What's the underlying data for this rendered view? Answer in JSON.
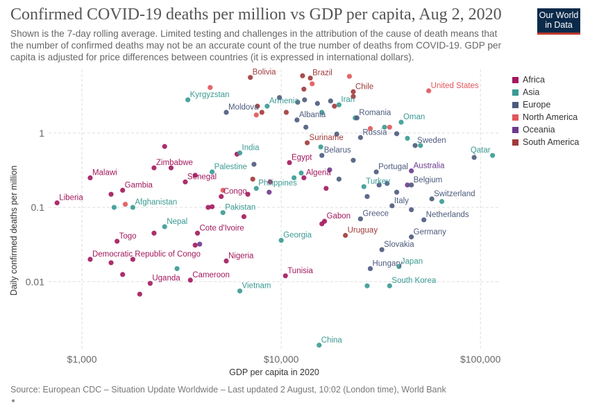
{
  "title": "Confirmed COVID-19 deaths per million vs GDP per capita, Aug 2, 2020",
  "subtitle": "Shown is the 7-day rolling average. Limited testing and challenges in the attribution of the cause of death means that the number of confirmed deaths may not be an accurate count of the true number of deaths from COVID-19. GDP per capita is adjusted for price differences between countries (it is expressed in international dollars).",
  "logo": {
    "line1": "Our World",
    "line2": "in Data"
  },
  "source": "Source: European CDC – Situation Update Worldwide – Last updated 2 August, 10:02 (London time), World Bank",
  "legend": [
    {
      "name": "Africa",
      "color": "#a2185d"
    },
    {
      "name": "Asia",
      "color": "#3a9a93"
    },
    {
      "name": "Europe",
      "color": "#4c5a7d"
    },
    {
      "name": "North America",
      "color": "#e0565a"
    },
    {
      "name": "Oceania",
      "color": "#6c3a8e"
    },
    {
      "name": "South America",
      "color": "#a03a3a"
    }
  ],
  "chart_data": {
    "type": "scatter",
    "title": "Confirmed COVID-19 deaths per million vs GDP per capita, Aug 2, 2020",
    "xlabel": "GDP per capita in 2020",
    "ylabel": "Daily confirmed deaths per million",
    "xscale": "log",
    "yscale": "log",
    "xlim": [
      680,
      125000
    ],
    "ylim": [
      0.0012,
      7.2
    ],
    "x_ticks": [
      1000,
      10000,
      100000
    ],
    "x_tick_labels": [
      "$1,000",
      "$10,000",
      "$100,000"
    ],
    "y_ticks": [
      0.01,
      0.1,
      1
    ],
    "y_tick_labels": [
      "0.01",
      "0.1",
      "1"
    ],
    "grid": true,
    "legend_position": "right",
    "labeled_points": [
      {
        "label": "Bolivia",
        "region": "South America",
        "x": 7000,
        "y": 5.6
      },
      {
        "label": "Brazil",
        "region": "South America",
        "x": 14000,
        "y": 5.5
      },
      {
        "label": "Chile",
        "region": "South America",
        "x": 23000,
        "y": 3.6
      },
      {
        "label": "United States",
        "region": "North America",
        "x": 55000,
        "y": 3.7
      },
      {
        "label": "Kyrgyzstan",
        "region": "Asia",
        "x": 3400,
        "y": 2.8
      },
      {
        "label": "Armenia",
        "region": "Asia",
        "x": 8500,
        "y": 2.3
      },
      {
        "label": "Iran",
        "region": "Asia",
        "x": 19500,
        "y": 2.4
      },
      {
        "label": "Moldova",
        "region": "Europe",
        "x": 5300,
        "y": 1.9
      },
      {
        "label": "Albania",
        "region": "Europe",
        "x": 12000,
        "y": 1.5
      },
      {
        "label": "Romania",
        "region": "Europe",
        "x": 24000,
        "y": 1.6
      },
      {
        "label": "Oman",
        "region": "Asia",
        "x": 40000,
        "y": 1.4
      },
      {
        "label": "Russia",
        "region": "Europe",
        "x": 25000,
        "y": 0.87
      },
      {
        "label": "Sweden",
        "region": "Europe",
        "x": 47000,
        "y": 0.68
      },
      {
        "label": "Suriname",
        "region": "South America",
        "x": 13500,
        "y": 0.74
      },
      {
        "label": "Qatar",
        "region": "Asia",
        "x": 115000,
        "y": 0.5
      },
      {
        "label": "India",
        "region": "Asia",
        "x": 6200,
        "y": 0.54
      },
      {
        "label": "Belarus",
        "region": "Europe",
        "x": 16000,
        "y": 0.5
      },
      {
        "label": "Egypt",
        "region": "Africa",
        "x": 11000,
        "y": 0.4
      },
      {
        "label": "Zimbabwe",
        "region": "Africa",
        "x": 2300,
        "y": 0.34
      },
      {
        "label": "Palestine",
        "region": "Asia",
        "x": 4500,
        "y": 0.3
      },
      {
        "label": "Portugal",
        "region": "Europe",
        "x": 30000,
        "y": 0.3
      },
      {
        "label": "Australia",
        "region": "Oceania",
        "x": 45000,
        "y": 0.31
      },
      {
        "label": "Malawi",
        "region": "Africa",
        "x": 1100,
        "y": 0.25
      },
      {
        "label": "Algeria",
        "region": "Africa",
        "x": 13000,
        "y": 0.25
      },
      {
        "label": "Senegal",
        "region": "Africa",
        "x": 3300,
        "y": 0.22
      },
      {
        "label": "Philippines",
        "region": "Asia",
        "x": 7500,
        "y": 0.18
      },
      {
        "label": "Turkey",
        "region": "Asia",
        "x": 26000,
        "y": 0.19
      },
      {
        "label": "Belgium",
        "region": "Europe",
        "x": 45000,
        "y": 0.2
      },
      {
        "label": "Gambia",
        "region": "Africa",
        "x": 1600,
        "y": 0.17
      },
      {
        "label": "Congo",
        "region": "Africa",
        "x": 5000,
        "y": 0.14
      },
      {
        "label": "Switzerland",
        "region": "Europe",
        "x": 57000,
        "y": 0.13
      },
      {
        "label": "Liberia",
        "region": "Africa",
        "x": 750,
        "y": 0.115
      },
      {
        "label": "Italy",
        "region": "Europe",
        "x": 36000,
        "y": 0.105
      },
      {
        "label": "Afghanistan",
        "region": "Asia",
        "x": 1800,
        "y": 0.1
      },
      {
        "label": "Pakistan",
        "region": "Asia",
        "x": 5100,
        "y": 0.085
      },
      {
        "label": "Greece",
        "region": "Europe",
        "x": 25000,
        "y": 0.07
      },
      {
        "label": "Netherlands",
        "region": "Europe",
        "x": 52000,
        "y": 0.068
      },
      {
        "label": "Gabon",
        "region": "Africa",
        "x": 16500,
        "y": 0.065
      },
      {
        "label": "Nepal",
        "region": "Asia",
        "x": 2600,
        "y": 0.055
      },
      {
        "label": "Cote d'Ivoire",
        "region": "Africa",
        "x": 3800,
        "y": 0.045
      },
      {
        "label": "Uruguay",
        "region": "South America",
        "x": 21000,
        "y": 0.042
      },
      {
        "label": "Germany",
        "region": "Europe",
        "x": 45000,
        "y": 0.04
      },
      {
        "label": "Georgia",
        "region": "Asia",
        "x": 10000,
        "y": 0.036
      },
      {
        "label": "Togo",
        "region": "Africa",
        "x": 1500,
        "y": 0.035
      },
      {
        "label": "Slovakia",
        "region": "Europe",
        "x": 32000,
        "y": 0.027
      },
      {
        "label": "Democratic Republic of Congo",
        "region": "Africa",
        "x": 1100,
        "y": 0.02
      },
      {
        "label": "Nigeria",
        "region": "Africa",
        "x": 5300,
        "y": 0.019
      },
      {
        "label": "Japan",
        "region": "Asia",
        "x": 39000,
        "y": 0.016
      },
      {
        "label": "Hungary",
        "region": "Europe",
        "x": 28000,
        "y": 0.015
      },
      {
        "label": "Tunisia",
        "region": "Africa",
        "x": 10500,
        "y": 0.012
      },
      {
        "label": "Cameroon",
        "region": "Africa",
        "x": 3500,
        "y": 0.0105
      },
      {
        "label": "Uganda",
        "region": "Africa",
        "x": 2200,
        "y": 0.0095
      },
      {
        "label": "South Korea",
        "region": "Asia",
        "x": 35000,
        "y": 0.0088
      },
      {
        "label": "Vietnam",
        "region": "Asia",
        "x": 6200,
        "y": 0.0075
      },
      {
        "label": "China",
        "region": "Asia",
        "x": 15500,
        "y": 0.0014
      }
    ],
    "unlabeled_points": [
      {
        "region": "North America",
        "x": 4400,
        "y": 4.1
      },
      {
        "region": "South America",
        "x": 12800,
        "y": 5.9
      },
      {
        "region": "North America",
        "x": 14300,
        "y": 4.6
      },
      {
        "region": "North America",
        "x": 22000,
        "y": 5.8
      },
      {
        "region": "South America",
        "x": 13000,
        "y": 3.9
      },
      {
        "region": "South America",
        "x": 23000,
        "y": 3.1
      },
      {
        "region": "Europe",
        "x": 9800,
        "y": 3.0
      },
      {
        "region": "Europe",
        "x": 12100,
        "y": 2.6
      },
      {
        "region": "Europe",
        "x": 13100,
        "y": 2.8
      },
      {
        "region": "Europe",
        "x": 15200,
        "y": 2.5
      },
      {
        "region": "Europe",
        "x": 17700,
        "y": 2.7
      },
      {
        "region": "South America",
        "x": 7600,
        "y": 2.3
      },
      {
        "region": "South America",
        "x": 10600,
        "y": 1.9
      },
      {
        "region": "South America",
        "x": 18500,
        "y": 2.3
      },
      {
        "region": "Asia",
        "x": 16000,
        "y": 1.9
      },
      {
        "region": "North America",
        "x": 7500,
        "y": 1.75
      },
      {
        "region": "South America",
        "x": 8000,
        "y": 1.9
      },
      {
        "region": "Europe",
        "x": 13300,
        "y": 1.2
      },
      {
        "region": "Asia",
        "x": 23500,
        "y": 1.6
      },
      {
        "region": "Asia",
        "x": 33000,
        "y": 1.2
      },
      {
        "region": "North America",
        "x": 35000,
        "y": 1.2
      },
      {
        "region": "North America",
        "x": 28000,
        "y": 1.15
      },
      {
        "region": "Europe",
        "x": 38000,
        "y": 0.98
      },
      {
        "region": "Europe",
        "x": 19000,
        "y": 0.97
      },
      {
        "region": "Asia",
        "x": 43000,
        "y": 0.85
      },
      {
        "region": "Asia",
        "x": 50000,
        "y": 0.68
      },
      {
        "region": "Europe",
        "x": 93000,
        "y": 0.47
      },
      {
        "region": "Asia",
        "x": 15800,
        "y": 0.65
      },
      {
        "region": "Europe",
        "x": 23000,
        "y": 0.43
      },
      {
        "region": "Africa",
        "x": 2600,
        "y": 0.66
      },
      {
        "region": "Africa",
        "x": 6000,
        "y": 0.52
      },
      {
        "region": "Europe",
        "x": 7300,
        "y": 0.38
      },
      {
        "region": "Africa",
        "x": 2800,
        "y": 0.34
      },
      {
        "region": "Asia",
        "x": 12600,
        "y": 0.29
      },
      {
        "region": "Oceania",
        "x": 17500,
        "y": 0.32
      },
      {
        "region": "Africa",
        "x": 3700,
        "y": 0.27
      },
      {
        "region": "South America",
        "x": 7200,
        "y": 0.24
      },
      {
        "region": "Africa",
        "x": 6800,
        "y": 0.15
      },
      {
        "region": "Africa",
        "x": 8800,
        "y": 0.22
      },
      {
        "region": "Asia",
        "x": 11600,
        "y": 0.25
      },
      {
        "region": "Europe",
        "x": 19500,
        "y": 0.24
      },
      {
        "region": "Africa",
        "x": 16800,
        "y": 0.18
      },
      {
        "region": "Europe",
        "x": 31000,
        "y": 0.2
      },
      {
        "region": "Europe",
        "x": 34000,
        "y": 0.21
      },
      {
        "region": "Europe",
        "x": 38000,
        "y": 0.16
      },
      {
        "region": "Oceania",
        "x": 43000,
        "y": 0.2
      },
      {
        "region": "Europe",
        "x": 27000,
        "y": 0.14
      },
      {
        "region": "Asia",
        "x": 64000,
        "y": 0.12
      },
      {
        "region": "Oceania",
        "x": 8700,
        "y": 0.16
      },
      {
        "region": "Africa",
        "x": 1400,
        "y": 0.15
      },
      {
        "region": "North America",
        "x": 5100,
        "y": 0.17
      },
      {
        "region": "North America",
        "x": 1650,
        "y": 0.11
      },
      {
        "region": "Asia",
        "x": 1450,
        "y": 0.1
      },
      {
        "region": "Africa",
        "x": 4300,
        "y": 0.1
      },
      {
        "region": "Africa",
        "x": 4500,
        "y": 0.102
      },
      {
        "region": "Africa",
        "x": 6500,
        "y": 0.075
      },
      {
        "region": "Europe",
        "x": 45000,
        "y": 0.093
      },
      {
        "region": "Africa",
        "x": 16000,
        "y": 0.06
      },
      {
        "region": "Africa",
        "x": 2300,
        "y": 0.045
      },
      {
        "region": "Africa",
        "x": 3700,
        "y": 0.031
      },
      {
        "region": "Oceania",
        "x": 3900,
        "y": 0.032
      },
      {
        "region": "Africa",
        "x": 1800,
        "y": 0.02
      },
      {
        "region": "Africa",
        "x": 1400,
        "y": 0.018
      },
      {
        "region": "Asia",
        "x": 3000,
        "y": 0.015
      },
      {
        "region": "Africa",
        "x": 1600,
        "y": 0.0125
      },
      {
        "region": "Asia",
        "x": 27000,
        "y": 0.0088
      },
      {
        "region": "Africa",
        "x": 1950,
        "y": 0.0068
      }
    ]
  }
}
